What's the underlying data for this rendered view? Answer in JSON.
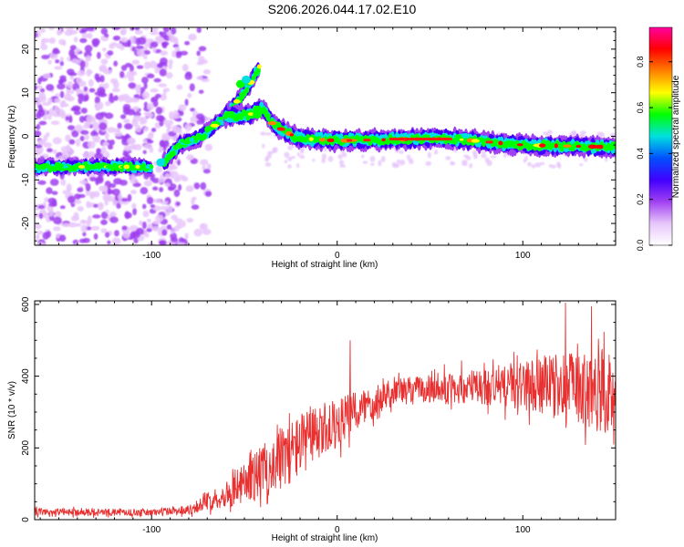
{
  "title": "S206.2026.044.17.02.E10",
  "chart_data": [
    {
      "type": "heatmap",
      "xlabel": "Height of straight line (km)",
      "ylabel": "Frequency (Hz)",
      "xlim": [
        -163,
        150
      ],
      "ylim": [
        -25,
        25
      ],
      "x_ticks": [
        -100,
        0,
        100
      ],
      "y_ticks": [
        -20,
        -10,
        0,
        10,
        20
      ],
      "colorbar": {
        "label": "Normalized spectral amplitude",
        "range": [
          0.0,
          0.95
        ],
        "ticks": [
          "0.0",
          "0.2",
          "0.4",
          "0.6",
          "0.8"
        ],
        "tick_values": [
          0.0,
          0.2,
          0.4,
          0.6,
          0.8
        ]
      },
      "colors": [
        "#ffffff",
        "#e7c6fb",
        "#a040f0",
        "#4000ff",
        "#0050ff",
        "#00e0e0",
        "#00ff00",
        "#ffff00",
        "#ff8000",
        "#ff0000",
        "#ff00a0"
      ],
      "noise_region_x_end": -75,
      "ridge": [
        {
          "x": -163,
          "f": -7.0
        },
        {
          "x": -100,
          "f": -7.0
        },
        {
          "x": -93,
          "f": -6.0
        },
        {
          "x": -85,
          "f": -2.0
        },
        {
          "x": -73,
          "f": 0.0
        },
        {
          "x": -63,
          "f": 3.5
        },
        {
          "x": -52,
          "f": 9.0
        },
        {
          "x": -47,
          "f": 12.0
        },
        {
          "x": -42,
          "f": 16.0
        }
      ],
      "ridge2": [
        {
          "x": -60,
          "f": 4.5
        },
        {
          "x": -47,
          "f": 5.0
        },
        {
          "x": -40,
          "f": 6.5
        },
        {
          "x": -35,
          "f": 3.0
        },
        {
          "x": -28,
          "f": 1.0
        },
        {
          "x": -20,
          "f": -0.5
        },
        {
          "x": 0,
          "f": -1.0
        },
        {
          "x": 60,
          "f": -0.5
        },
        {
          "x": 100,
          "f": -2.0
        },
        {
          "x": 150,
          "f": -2.5
        }
      ]
    },
    {
      "type": "line",
      "xlabel": "Height of straight line (km)",
      "ylabel": "SNR (10 * v/v)",
      "xlim": [
        -163,
        150
      ],
      "ylim": [
        0,
        610
      ],
      "x_ticks": [
        -100,
        0,
        100
      ],
      "y_ticks": [
        0,
        200,
        400,
        600
      ],
      "series": [
        {
          "name": "SNR",
          "color": "#e83030",
          "envelope": [
            {
              "x": -163,
              "mean": 22,
              "noise": 10
            },
            {
              "x": -100,
              "mean": 20,
              "noise": 10
            },
            {
              "x": -80,
              "mean": 28,
              "noise": 14
            },
            {
              "x": -60,
              "mean": 70,
              "noise": 35
            },
            {
              "x": -45,
              "mean": 120,
              "noise": 70
            },
            {
              "x": -30,
              "mean": 170,
              "noise": 90
            },
            {
              "x": -20,
              "mean": 210,
              "noise": 90
            },
            {
              "x": -5,
              "mean": 250,
              "noise": 70
            },
            {
              "x": 10,
              "mean": 300,
              "noise": 60
            },
            {
              "x": 25,
              "mean": 350,
              "noise": 45
            },
            {
              "x": 40,
              "mean": 365,
              "noise": 35
            },
            {
              "x": 60,
              "mean": 365,
              "noise": 45
            },
            {
              "x": 80,
              "mean": 370,
              "noise": 55
            },
            {
              "x": 100,
              "mean": 375,
              "noise": 70
            },
            {
              "x": 120,
              "mean": 370,
              "noise": 95
            },
            {
              "x": 150,
              "mean": 350,
              "noise": 120
            }
          ],
          "spikes": [
            {
              "x": 7,
              "y": 500
            },
            {
              "x": 123,
              "y": 605
            },
            {
              "x": 137,
              "y": 595
            }
          ]
        }
      ]
    }
  ]
}
